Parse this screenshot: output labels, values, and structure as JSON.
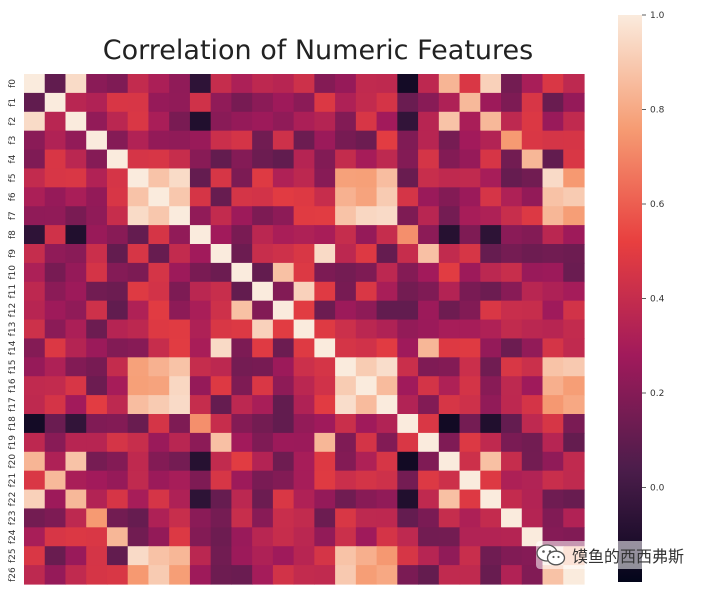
{
  "chart_data": {
    "type": "heatmap",
    "title": "Correlation of Numeric Features",
    "row_labels": [
      "f0",
      "f1",
      "f2",
      "f3",
      "f4",
      "f5",
      "f6",
      "f7",
      "f8",
      "f9",
      "f10",
      "f11",
      "f12",
      "f13",
      "f14",
      "f15",
      "f16",
      "f17",
      "f18",
      "f19",
      "f20",
      "f21",
      "f22",
      "f23",
      "f24",
      "f25",
      "f26"
    ],
    "colorbar": {
      "ticks": [
        "1.0",
        "0.8",
        "0.6",
        "0.4",
        "0.2",
        "0.0"
      ],
      "tick_values": [
        1.0,
        0.8,
        0.6,
        0.4,
        0.2,
        0.0
      ],
      "range": [
        -0.2,
        1.0
      ],
      "colors": [
        "#03051a",
        "#4c1d4b",
        "#a11a5b",
        "#e83f3f",
        "#f69c73",
        "#faebdd"
      ]
    }
  },
  "watermark": {
    "text": "馍鱼的西西弗斯",
    "icon": "wechat-icon"
  }
}
